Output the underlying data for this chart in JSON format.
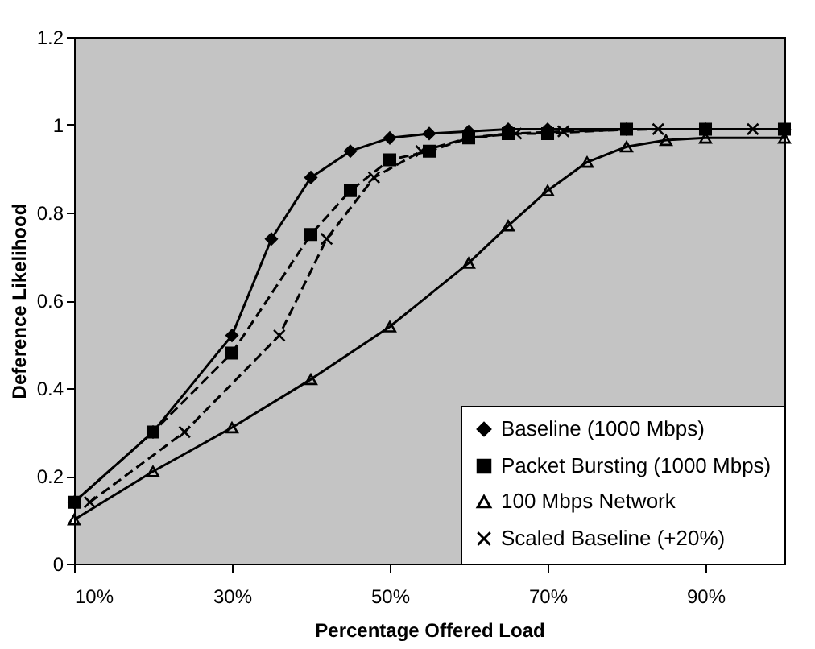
{
  "chart_data": {
    "type": "line",
    "xlabel": "Percentage Offered Load",
    "ylabel": "Deference Likelihood",
    "xlim": [
      10,
      100
    ],
    "ylim": [
      0,
      1.2
    ],
    "xticks": [
      {
        "value": 10,
        "label": "10%"
      },
      {
        "value": 30,
        "label": "30%"
      },
      {
        "value": 50,
        "label": "50%"
      },
      {
        "value": 70,
        "label": "70%"
      },
      {
        "value": 90,
        "label": "90%"
      }
    ],
    "yticks": [
      0,
      0.2,
      0.4,
      0.6,
      0.8,
      1,
      1.2
    ],
    "grid": false,
    "legend": "bottom right",
    "series": [
      {
        "name": "Baseline (1000 Mbps)",
        "color": "#000000",
        "marker": "diamond",
        "line_style": "solid",
        "x": [
          10,
          20,
          30,
          35,
          40,
          45,
          50,
          55,
          60,
          65,
          70,
          80,
          90,
          100
        ],
        "values": [
          0.14,
          0.3,
          0.52,
          0.74,
          0.88,
          0.94,
          0.97,
          0.98,
          0.985,
          0.99,
          0.99,
          0.99,
          0.99,
          0.99
        ]
      },
      {
        "name": "Packet Bursting (1000 Mbps)",
        "color": "#000000",
        "marker": "square",
        "line_style": "dashed",
        "x": [
          10,
          20,
          30,
          40,
          45,
          50,
          55,
          60,
          65,
          70,
          80,
          90,
          100
        ],
        "values": [
          0.14,
          0.3,
          0.48,
          0.75,
          0.85,
          0.92,
          0.94,
          0.97,
          0.98,
          0.98,
          0.99,
          0.99,
          0.99
        ]
      },
      {
        "name": "100 Mbps Network",
        "color": "#000000",
        "marker": "triangle",
        "line_style": "solid",
        "x": [
          10,
          20,
          30,
          40,
          50,
          60,
          65,
          70,
          75,
          80,
          85,
          90,
          100
        ],
        "values": [
          0.1,
          0.21,
          0.31,
          0.42,
          0.54,
          0.685,
          0.77,
          0.85,
          0.915,
          0.95,
          0.965,
          0.97,
          0.97
        ]
      },
      {
        "name": "Scaled Baseline (+20%)",
        "color": "#000000",
        "marker": "cross",
        "line_style": "dashed",
        "x": [
          12,
          24,
          36,
          42,
          48,
          54,
          60,
          66,
          72,
          84,
          96
        ],
        "values": [
          0.14,
          0.3,
          0.52,
          0.74,
          0.88,
          0.94,
          0.97,
          0.98,
          0.985,
          0.99,
          0.99
        ]
      }
    ]
  }
}
